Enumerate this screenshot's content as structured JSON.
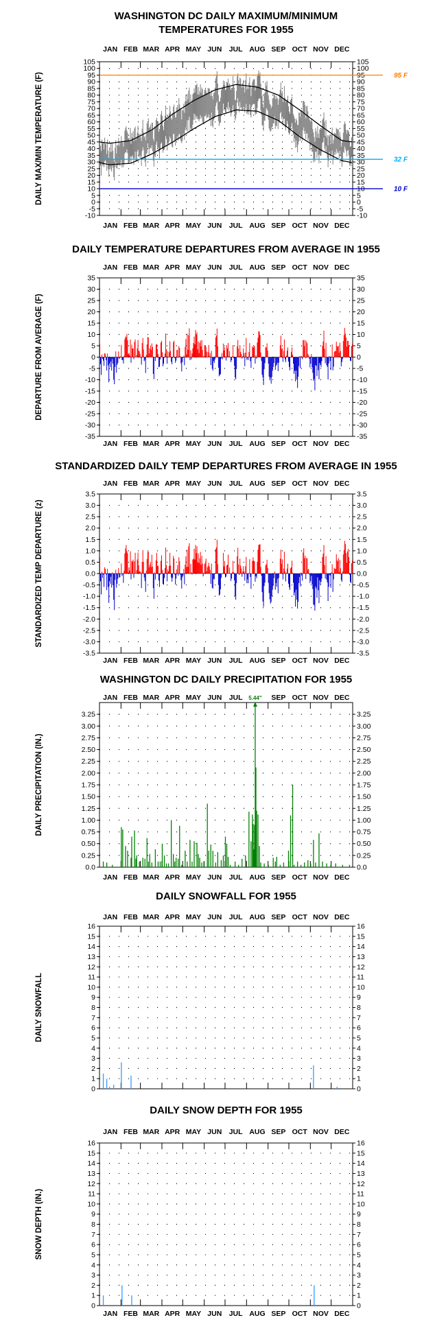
{
  "months": [
    "JAN",
    "FEB",
    "MAR",
    "APR",
    "MAY",
    "JUN",
    "JUL",
    "AUG",
    "SEP",
    "OCT",
    "NOV",
    "DEC"
  ],
  "colors": {
    "max_min": "#808080",
    "normal": "#000000",
    "positive": "#ff0000",
    "negative": "#0000cc",
    "precip": "#008000",
    "snow": "#3399ff",
    "ref95": "#ff8000",
    "ref32": "#00aaff",
    "ref10": "#0000cc"
  },
  "chart_data": [
    {
      "id": "temps",
      "type": "area",
      "title_lines": [
        "WASHINGTON DC DAILY MAXIMUM/MINIMUM",
        "TEMPERATURES FOR 1955"
      ],
      "ylabel": "DAILY MAX/MIN TEMPERATURE (F)",
      "ylim": [
        -10,
        105
      ],
      "ytick_step": 5,
      "yticks": [
        "105",
        "100",
        "95",
        "90",
        "85",
        "80",
        "75",
        "70",
        "65",
        "60",
        "55",
        "50",
        "45",
        "40",
        "35",
        "30",
        "25",
        "20",
        "15",
        "10",
        "5",
        "0",
        "-5",
        "-10"
      ],
      "grid": true,
      "month_labels_top": true,
      "month_labels_bottom": true,
      "reference_lines": [
        {
          "value": 95,
          "label": "95 F",
          "color": "#ff8000"
        },
        {
          "value": 32,
          "label": "32 F",
          "color": "#00aaff"
        },
        {
          "value": 10,
          "label": "10 F",
          "color": "#0000cc"
        }
      ],
      "normal_max_monthly": [
        44,
        46,
        54,
        66,
        76,
        84,
        88,
        86,
        80,
        69,
        57,
        46
      ],
      "normal_min_monthly": [
        28,
        29,
        36,
        45,
        55,
        64,
        69,
        68,
        61,
        49,
        39,
        31
      ],
      "series": [
        {
          "name": "Daily max",
          "kind": "max"
        },
        {
          "name": "Daily min",
          "kind": "min"
        }
      ]
    },
    {
      "id": "departures",
      "type": "bar",
      "title_lines": [
        "DAILY TEMPERATURE DEPARTURES FROM AVERAGE IN 1955"
      ],
      "ylabel": "DEPARTURE FROM AVERAGE (F)",
      "ylim": [
        -35,
        35
      ],
      "ytick_step": 5,
      "yticks": [
        "35",
        "30",
        "25",
        "20",
        "15",
        "10",
        "5",
        "0",
        "-5",
        "-10",
        "-15",
        "-20",
        "-25",
        "-30",
        "-35"
      ],
      "grid": true,
      "month_labels_top": true,
      "month_labels_bottom": true,
      "scale": 1,
      "jitter": 3
    },
    {
      "id": "standardized",
      "type": "bar",
      "title_lines": [
        "STANDARDIZED DAILY TEMP DEPARTURES FROM AVERAGE IN 1955"
      ],
      "ylabel": "STANDARDIZED TEMP DEPARTURE (z)",
      "ylim": [
        -3.5,
        3.5
      ],
      "ytick_step": 0.5,
      "yticks": [
        "3.5",
        "3.0",
        "2.5",
        "2.0",
        "1.5",
        "1.0",
        "0.5",
        "0.0",
        "-0.5",
        "-1.0",
        "-1.5",
        "-2.0",
        "-2.5",
        "-3.0",
        "-3.5"
      ],
      "grid": true,
      "month_labels_top": true,
      "month_labels_bottom": true,
      "scale": 0.118,
      "jitter": 0.25
    },
    {
      "id": "precip",
      "type": "bar",
      "title_lines": [
        "WASHINGTON DC DAILY PRECIPITATION FOR 1955"
      ],
      "ylabel": "DAILY PRECIPITATION (IN.)",
      "ylim": [
        0,
        3.5
      ],
      "ytick_step": 0.25,
      "yticks": [
        "3.25",
        "3.00",
        "2.75",
        "2.50",
        "2.25",
        "2.00",
        "1.75",
        "1.50",
        "1.25",
        "1.00",
        "0.75",
        "0.50",
        "0.25",
        "0.0"
      ],
      "grid": true,
      "month_labels_top": true,
      "month_labels_bottom": true,
      "month_labels_top_skip": [
        "AUG"
      ],
      "month_labels_bottom_skip": [],
      "annotation": {
        "day": 224,
        "value": 5.44,
        "label": "5.44\""
      },
      "values": [
        [
          5,
          0.12
        ],
        [
          10,
          0.1
        ],
        [
          18,
          0.05
        ],
        [
          31,
          0.85
        ],
        [
          33,
          0.8
        ],
        [
          37,
          0.45
        ],
        [
          40,
          0.35
        ],
        [
          45,
          0.2
        ],
        [
          46,
          0.65
        ],
        [
          50,
          0.78
        ],
        [
          52,
          0.18
        ],
        [
          53,
          0.25
        ],
        [
          57,
          0.12
        ],
        [
          62,
          0.2
        ],
        [
          65,
          0.18
        ],
        [
          68,
          0.62
        ],
        [
          70,
          0.12
        ],
        [
          72,
          0.28
        ],
        [
          75,
          0.1
        ],
        [
          80,
          0.38
        ],
        [
          84,
          0.12
        ],
        [
          87,
          0.12
        ],
        [
          90,
          0.5
        ],
        [
          93,
          0.25
        ],
        [
          96,
          0.08
        ],
        [
          99,
          0.08
        ],
        [
          103,
          1.0
        ],
        [
          106,
          0.28
        ],
        [
          108,
          0.12
        ],
        [
          110,
          0.2
        ],
        [
          113,
          0.18
        ],
        [
          115,
          0.88
        ],
        [
          118,
          0.05
        ],
        [
          123,
          0.35
        ],
        [
          126,
          0.12
        ],
        [
          130,
          0.58
        ],
        [
          133,
          0.12
        ],
        [
          136,
          0.55
        ],
        [
          140,
          0.52
        ],
        [
          142,
          0.28
        ],
        [
          144,
          0.2
        ],
        [
          147,
          0.1
        ],
        [
          150,
          0.12
        ],
        [
          155,
          1.35
        ],
        [
          157,
          0.35
        ],
        [
          160,
          0.48
        ],
        [
          163,
          0.35
        ],
        [
          167,
          0.1
        ],
        [
          170,
          0.32
        ],
        [
          175,
          0.15
        ],
        [
          178,
          0.25
        ],
        [
          181,
          0.65
        ],
        [
          183,
          0.5
        ],
        [
          185,
          0.22
        ],
        [
          188,
          0.05
        ],
        [
          195,
          0.12
        ],
        [
          200,
          0.05
        ],
        [
          205,
          0.18
        ],
        [
          210,
          0.25
        ],
        [
          215,
          1.18
        ],
        [
          218,
          0.55
        ],
        [
          220,
          1.12
        ],
        [
          221,
          0.92
        ],
        [
          222,
          0.38
        ],
        [
          223,
          0.9
        ],
        [
          224,
          3.5
        ],
        [
          225,
          2.12
        ],
        [
          226,
          1.2
        ],
        [
          228,
          1.12
        ],
        [
          230,
          0.45
        ],
        [
          232,
          0.1
        ],
        [
          237,
          0.08
        ],
        [
          243,
          0.05
        ],
        [
          250,
          0.2
        ],
        [
          253,
          0.12
        ],
        [
          255,
          0.22
        ],
        [
          260,
          0.05
        ],
        [
          265,
          0.1
        ],
        [
          272,
          0.35
        ],
        [
          275,
          1.1
        ],
        [
          278,
          1.75
        ],
        [
          280,
          0.05
        ],
        [
          285,
          0.12
        ],
        [
          290,
          0.05
        ],
        [
          295,
          0.1
        ],
        [
          300,
          0.15
        ],
        [
          304,
          0.08
        ],
        [
          308,
          0.58
        ],
        [
          311,
          0.1
        ],
        [
          316,
          0.72
        ],
        [
          321,
          0.12
        ],
        [
          327,
          0.08
        ],
        [
          333,
          0.05
        ],
        [
          340,
          0.08
        ],
        [
          350,
          0.05
        ],
        [
          360,
          0.05
        ]
      ]
    },
    {
      "id": "snowfall",
      "type": "bar",
      "title_lines": [
        "DAILY SNOWFALL FOR 1955"
      ],
      "ylabel": "DAILY SNOWFALL",
      "ylim": [
        0,
        16
      ],
      "ytick_step": 1,
      "yticks": [
        "16",
        "15",
        "14",
        "13",
        "12",
        "11",
        "10",
        "9",
        "8",
        "7",
        "6",
        "5",
        "4",
        "3",
        "2",
        "1",
        "0"
      ],
      "grid": true,
      "month_labels_top": true,
      "month_labels_bottom": false,
      "values": [
        [
          5,
          1.5
        ],
        [
          10,
          1.0
        ],
        [
          14,
          0.2
        ],
        [
          20,
          0.4
        ],
        [
          31,
          2.6
        ],
        [
          45,
          1.3
        ],
        [
          308,
          2.3
        ],
        [
          342,
          0.2
        ]
      ]
    },
    {
      "id": "snowdepth",
      "type": "bar",
      "title_lines": [
        "DAILY SNOW DEPTH FOR 1955"
      ],
      "ylabel": "SNOW DEPTH (IN.)",
      "ylim": [
        0,
        16
      ],
      "ytick_step": 1,
      "yticks": [
        "16",
        "15",
        "14",
        "13",
        "12",
        "11",
        "10",
        "9",
        "8",
        "7",
        "6",
        "5",
        "4",
        "3",
        "2",
        "1",
        "0"
      ],
      "grid": true,
      "month_labels_top": true,
      "month_labels_bottom": true,
      "values": [
        [
          5,
          1.0
        ],
        [
          32,
          2.0
        ],
        [
          46,
          1.0
        ],
        [
          309,
          2.0
        ]
      ]
    }
  ]
}
